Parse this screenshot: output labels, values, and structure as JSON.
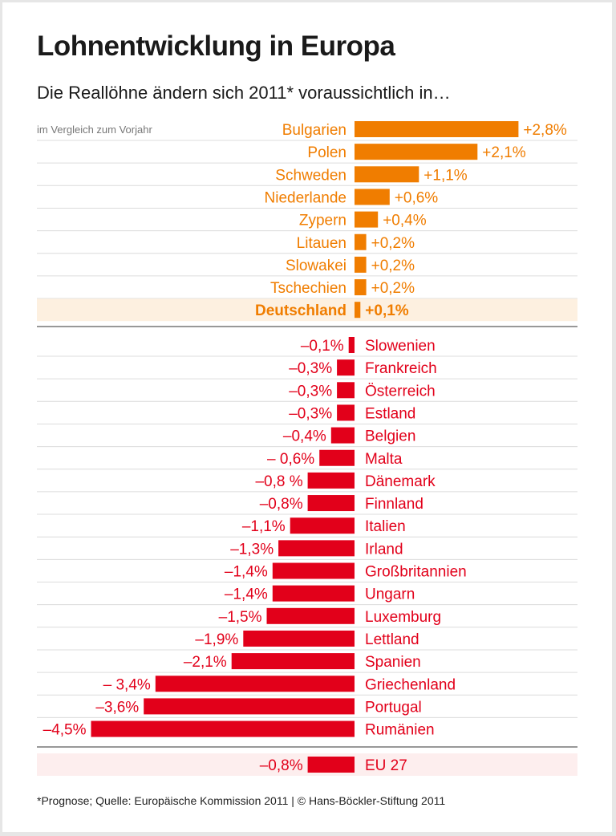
{
  "title": "Lohnentwicklung in Europa",
  "subtitle": "Die Reallöhne ändern sich 2011* voraussichtlich in…",
  "note": "im Vergleich zum Vorjahr",
  "footer": "*Prognose; Quelle: Europäische Kommission 2011 | © Hans-Böckler-Stiftung 2011",
  "colors": {
    "positive": "#f07d00",
    "negative": "#e2001a",
    "highlight_bg": "#fdf0e0"
  },
  "chart_data": {
    "type": "bar",
    "orientation": "horizontal",
    "unit": "%",
    "groups": [
      {
        "sign": "positive",
        "items": [
          {
            "category": "Bulgarien",
            "value": 2.8,
            "label": "+2,8%"
          },
          {
            "category": "Polen",
            "value": 2.1,
            "label": "+2,1%"
          },
          {
            "category": "Schweden",
            "value": 1.1,
            "label": "+1,1%"
          },
          {
            "category": "Niederlande",
            "value": 0.6,
            "label": "+0,6%"
          },
          {
            "category": "Zypern",
            "value": 0.4,
            "label": "+0,4%"
          },
          {
            "category": "Litauen",
            "value": 0.2,
            "label": "+0,2%"
          },
          {
            "category": "Slowakei",
            "value": 0.2,
            "label": "+0,2%"
          },
          {
            "category": "Tschechien",
            "value": 0.2,
            "label": "+0,2%"
          },
          {
            "category": "Deutschland",
            "value": 0.1,
            "label": "+0,1%",
            "highlight": true
          }
        ]
      },
      {
        "sign": "negative",
        "items": [
          {
            "category": "Slowenien",
            "value": -0.1,
            "label": "–0,1%"
          },
          {
            "category": "Frankreich",
            "value": -0.3,
            "label": "–0,3%"
          },
          {
            "category": "Österreich",
            "value": -0.3,
            "label": "–0,3%"
          },
          {
            "category": "Estland",
            "value": -0.3,
            "label": "–0,3%"
          },
          {
            "category": "Belgien",
            "value": -0.4,
            "label": "–0,4%"
          },
          {
            "category": "Malta",
            "value": -0.6,
            "label": "– 0,6%"
          },
          {
            "category": "Dänemark",
            "value": -0.8,
            "label": "–0,8 %"
          },
          {
            "category": "Finnland",
            "value": -0.8,
            "label": "–0,8%"
          },
          {
            "category": "Italien",
            "value": -1.1,
            "label": "–1,1%"
          },
          {
            "category": "Irland",
            "value": -1.3,
            "label": "–1,3%"
          },
          {
            "category": "Großbritannien",
            "value": -1.4,
            "label": "–1,4%"
          },
          {
            "category": "Ungarn",
            "value": -1.4,
            "label": "–1,4%"
          },
          {
            "category": "Luxemburg",
            "value": -1.5,
            "label": "–1,5%"
          },
          {
            "category": "Lettland",
            "value": -1.9,
            "label": "–1,9%"
          },
          {
            "category": "Spanien",
            "value": -2.1,
            "label": "–2,1%"
          },
          {
            "category": "Griechenland",
            "value": -3.4,
            "label": "– 3,4%"
          },
          {
            "category": "Portugal",
            "value": -3.6,
            "label": "–3,6%"
          },
          {
            "category": "Rumänien",
            "value": -4.5,
            "label": "–4,5%"
          }
        ]
      },
      {
        "sign": "negative",
        "items": [
          {
            "category": "EU 27",
            "value": -0.8,
            "label": "–0,8%",
            "highlight": true
          }
        ]
      }
    ]
  }
}
